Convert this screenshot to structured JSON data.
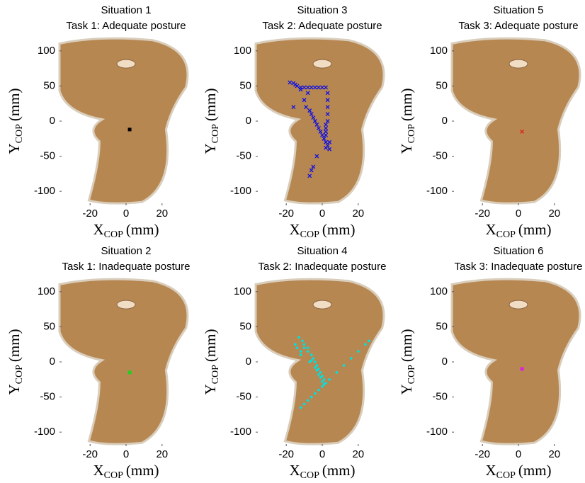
{
  "chart_data": [
    {
      "type": "scatter",
      "title": [
        "Situation 1",
        "Task 1: Adequate posture"
      ],
      "xlabel": "X",
      "xlabel_sub": "COP",
      "xlabel_unit": "(mm)",
      "ylabel": "Y",
      "ylabel_sub": "COP",
      "ylabel_unit": "(mm)",
      "xlim": [
        -37,
        37
      ],
      "ylim": [
        -120,
        120
      ],
      "xticks": [
        -20,
        0,
        20
      ],
      "yticks": [
        -100,
        -50,
        0,
        50,
        100
      ],
      "series": [
        {
          "color": "#000000",
          "marker": "square",
          "x": [
            2
          ],
          "y": [
            -12
          ]
        }
      ]
    },
    {
      "type": "scatter",
      "title": [
        "Situation 3",
        "Task 2: Adequate posture"
      ],
      "xlabel": "X",
      "xlabel_sub": "COP",
      "xlabel_unit": "(mm)",
      "ylabel": "Y",
      "ylabel_sub": "COP",
      "ylabel_unit": "(mm)",
      "xlim": [
        -37,
        37
      ],
      "ylim": [
        -120,
        120
      ],
      "xticks": [
        -20,
        0,
        20
      ],
      "yticks": [
        -100,
        -50,
        0,
        50,
        100
      ],
      "series": [
        {
          "color": "#1010e0",
          "marker": "x",
          "x": [
            -18,
            -16,
            -15,
            -14,
            -12,
            -10,
            -8,
            -6,
            -4,
            -2,
            0,
            2,
            3,
            3,
            3,
            3,
            3,
            2,
            2,
            2,
            2,
            1,
            -8,
            -10,
            -9,
            -7,
            -6,
            -5,
            -4,
            -3,
            -2,
            -1,
            0,
            1,
            2,
            3,
            4,
            4,
            2,
            -3,
            -5,
            -6,
            -7,
            -16,
            -12
          ],
          "y": [
            55,
            54,
            52,
            50,
            48,
            48,
            48,
            48,
            48,
            48,
            48,
            48,
            40,
            30,
            20,
            10,
            0,
            -10,
            -15,
            -20,
            -5,
            -25,
            40,
            30,
            20,
            15,
            10,
            5,
            0,
            -5,
            -10,
            -15,
            -20,
            -25,
            -30,
            -35,
            -40,
            -30,
            -38,
            -50,
            -65,
            -70,
            -78,
            20,
            45
          ]
        }
      ]
    },
    {
      "type": "scatter",
      "title": [
        "Situation 5",
        "Task 3: Adequate posture"
      ],
      "xlabel": "X",
      "xlabel_sub": "COP",
      "xlabel_unit": "(mm)",
      "ylabel": "Y",
      "ylabel_sub": "COP",
      "ylabel_unit": "(mm)",
      "xlim": [
        -37,
        37
      ],
      "ylim": [
        -120,
        120
      ],
      "xticks": [
        -20,
        0,
        20
      ],
      "yticks": [
        -100,
        -50,
        0,
        50,
        100
      ],
      "series": [
        {
          "color": "#e02020",
          "marker": "x",
          "x": [
            2
          ],
          "y": [
            -15
          ]
        }
      ]
    },
    {
      "type": "scatter",
      "title": [
        "Situation 2",
        "Task 1: Inadequate posture"
      ],
      "xlabel": "X",
      "xlabel_sub": "COP",
      "xlabel_unit": "(mm)",
      "ylabel": "Y",
      "ylabel_sub": "COP",
      "ylabel_unit": "(mm)",
      "xlim": [
        -37,
        37
      ],
      "ylim": [
        -120,
        120
      ],
      "xticks": [
        -20,
        0,
        20
      ],
      "yticks": [
        -100,
        -50,
        0,
        50,
        100
      ],
      "series": [
        {
          "color": "#20d020",
          "marker": "square",
          "x": [
            2
          ],
          "y": [
            -15
          ]
        }
      ]
    },
    {
      "type": "scatter",
      "title": [
        "Situation 4",
        "Task 2: Inadequate posture"
      ],
      "xlabel": "X",
      "xlabel_sub": "COP",
      "xlabel_unit": "(mm)",
      "ylabel": "Y",
      "ylabel_sub": "COP",
      "ylabel_unit": "(mm)",
      "xlim": [
        -37,
        37
      ],
      "ylim": [
        -120,
        120
      ],
      "xticks": [
        -20,
        0,
        20
      ],
      "yticks": [
        -100,
        -50,
        0,
        50,
        100
      ],
      "series": [
        {
          "color": "#00e0e0",
          "marker": "dot",
          "x": [
            -15,
            -13,
            -11,
            -10,
            -8,
            -6,
            -5,
            -4,
            -3,
            -2,
            -1,
            0,
            1,
            2,
            -12,
            -10,
            -7,
            -4,
            -2,
            0,
            1,
            -14,
            -12,
            -8,
            -6,
            -3,
            -1,
            -12,
            -10,
            -8,
            -6,
            -4,
            -2,
            0,
            4,
            8,
            12,
            16,
            20,
            24,
            26
          ],
          "y": [
            25,
            35,
            30,
            20,
            15,
            10,
            5,
            0,
            -5,
            -10,
            -15,
            -20,
            -25,
            -30,
            15,
            25,
            0,
            -8,
            -18,
            -28,
            -32,
            20,
            10,
            20,
            2,
            -12,
            -22,
            -65,
            -60,
            -55,
            -50,
            -45,
            -40,
            -35,
            -25,
            -15,
            -5,
            5,
            15,
            25,
            30
          ]
        }
      ]
    },
    {
      "type": "scatter",
      "title": [
        "Situation 6",
        "Task 3: Inadequate posture"
      ],
      "xlabel": "X",
      "xlabel_sub": "COP",
      "xlabel_unit": "(mm)",
      "ylabel": "Y",
      "ylabel_sub": "COP",
      "ylabel_unit": "(mm)",
      "xlim": [
        -37,
        37
      ],
      "ylim": [
        -120,
        120
      ],
      "xticks": [
        -20,
        0,
        20
      ],
      "yticks": [
        -100,
        -50,
        0,
        50,
        100
      ],
      "series": [
        {
          "color": "#e020e0",
          "marker": "square",
          "x": [
            2
          ],
          "y": [
            -10
          ]
        }
      ]
    }
  ]
}
